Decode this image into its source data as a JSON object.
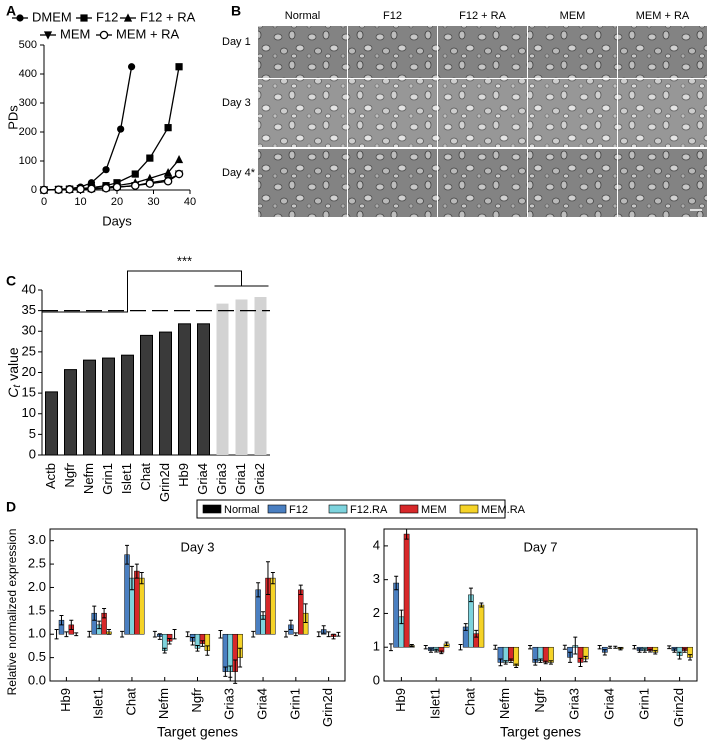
{
  "chart_data": [
    {
      "type": "line",
      "label": "A",
      "ylabel": "PDs",
      "xlabel": "Days",
      "xlim": [
        0,
        40
      ],
      "xticks": [
        0,
        10,
        20,
        30,
        40
      ],
      "ylim": [
        0,
        500
      ],
      "yticks": [
        0,
        100,
        200,
        300,
        400,
        500
      ],
      "series": [
        {
          "name": "DMEM",
          "marker": "circle",
          "color": "#000000",
          "x": [
            0,
            4,
            7,
            10,
            13,
            17,
            21,
            24
          ],
          "values": [
            0,
            2,
            5,
            10,
            25,
            70,
            210,
            425
          ]
        },
        {
          "name": "F12",
          "marker": "square",
          "color": "#000000",
          "x": [
            0,
            4,
            7,
            10,
            13,
            17,
            20,
            25,
            29,
            34,
            37
          ],
          "values": [
            0,
            2,
            3,
            5,
            8,
            15,
            25,
            55,
            110,
            215,
            425
          ]
        },
        {
          "name": "F12 + RA",
          "marker": "triangle-up",
          "color": "#000000",
          "x": [
            0,
            4,
            7,
            10,
            13,
            17,
            20,
            25,
            29,
            34,
            37
          ],
          "values": [
            0,
            1,
            2,
            3,
            5,
            8,
            15,
            25,
            40,
            60,
            105
          ]
        },
        {
          "name": "MEM",
          "marker": "triangle-down",
          "color": "#000000",
          "x": [
            0,
            4,
            7,
            10,
            13,
            17,
            20,
            25,
            29,
            34,
            37
          ],
          "values": [
            0,
            1,
            2,
            3,
            4,
            6,
            10,
            15,
            25,
            35,
            55
          ]
        },
        {
          "name": "MEM + RA",
          "marker": "circle-open",
          "color": "#000000",
          "x": [
            0,
            4,
            7,
            10,
            13,
            17,
            20,
            25,
            29,
            34,
            37
          ],
          "values": [
            0,
            1,
            2,
            3,
            4,
            6,
            10,
            15,
            22,
            30,
            55
          ]
        }
      ]
    },
    {
      "type": "bar",
      "label": "C",
      "ylabel": "C",
      "ylabel_subscript": "t",
      "ylabel_suffix": "value",
      "categories": [
        "Actb",
        "Ngfr",
        "Nefm",
        "Grin1",
        "Islet1",
        "Chat",
        "Grin2d",
        "Hb9",
        "Gria4",
        "Gria3",
        "Gria1",
        "Gria2"
      ],
      "values": [
        15.3,
        20.7,
        23,
        23.5,
        24.2,
        29,
        29.8,
        31.8,
        31.8,
        36.7,
        37.7,
        38.3
      ],
      "colors": [
        "#3a3a3a",
        "#3a3a3a",
        "#3a3a3a",
        "#3a3a3a",
        "#3a3a3a",
        "#3a3a3a",
        "#3a3a3a",
        "#3a3a3a",
        "#3a3a3a",
        "#d3d3d3",
        "#d3d3d3",
        "#d3d3d3"
      ],
      "ylim": [
        0,
        40
      ],
      "yticks": [
        0,
        5,
        10,
        15,
        20,
        25,
        30,
        35,
        40
      ],
      "reference_line": 35,
      "annotation": "***"
    },
    {
      "type": "grouped_bar",
      "label": "D",
      "title": "Day 3",
      "xlabel": "Target genes",
      "ylabel": "Relative normalized expression",
      "bar_base": 1,
      "categories": [
        "Hb9",
        "Islet1",
        "Chat",
        "Nefm",
        "Ngfr",
        "Gria3",
        "Gria4",
        "Grin1",
        "Grin2d"
      ],
      "ylim": [
        0,
        3.25
      ],
      "yticks": [
        {
          "value": 0,
          "label": "0.0"
        },
        0.5,
        {
          "value": 1,
          "label": "1.0"
        },
        1.5,
        {
          "value": 2,
          "label": "2.0"
        },
        2.5,
        {
          "value": 3,
          "label": "3.0"
        }
      ],
      "series": [
        {
          "name": "Normal",
          "color": "#000000",
          "values": [
            1,
            1,
            1,
            1,
            1,
            1,
            1,
            1,
            1
          ],
          "errors": [
            0.1,
            0.06,
            0.06,
            0.06,
            0.05,
            0.08,
            0.06,
            0.06,
            0.05
          ]
        },
        {
          "name": "F12",
          "color": "#4a7fc1",
          "values": [
            1.3,
            1.45,
            2.7,
            0.95,
            0.85,
            0.2,
            1.95,
            1.2,
            1.1
          ],
          "errors": [
            0.1,
            0.15,
            0.2,
            0.06,
            0.08,
            0.1,
            0.15,
            0.1,
            0.08
          ]
        },
        {
          "name": "F12.RA",
          "color": "#7dd3dd",
          "values": [
            1.0,
            1.2,
            2.2,
            0.65,
            0.7,
            0.2,
            1.4,
            1.0,
            1.0
          ],
          "errors": [
            0.05,
            0.08,
            0.25,
            0.05,
            0.06,
            0.12,
            0.08,
            0.03,
            0.05
          ]
        },
        {
          "name": "MEM",
          "color": "#d7282a",
          "values": [
            1.2,
            1.45,
            2.35,
            0.85,
            0.8,
            0.2,
            2.2,
            1.95,
            0.95
          ],
          "errors": [
            0.1,
            0.1,
            0.15,
            0.06,
            0.06,
            0.25,
            0.35,
            0.1,
            0.05
          ]
        },
        {
          "name": "MEM.RA",
          "color": "#f5d327",
          "values": [
            1.0,
            1.05,
            2.2,
            1.0,
            0.65,
            0.5,
            2.2,
            1.45,
            1.0
          ],
          "errors": [
            0.03,
            0.05,
            0.12,
            0.1,
            0.1,
            0.2,
            0.12,
            0.2,
            0.04
          ]
        }
      ]
    },
    {
      "type": "grouped_bar",
      "title": "Day 7",
      "xlabel": "Target genes",
      "bar_base": 1,
      "categories": [
        "Hb9",
        "Islet1",
        "Chat",
        "Nefm",
        "Ngfr",
        "Gria3",
        "Gria4",
        "Grin1",
        "Grin2d"
      ],
      "ylim": [
        0,
        4.5
      ],
      "yticks": [
        0,
        1,
        2,
        3,
        4
      ],
      "series": [
        {
          "color": "#000000",
          "values": [
            1,
            1,
            1,
            1,
            1,
            1,
            1,
            1,
            1
          ],
          "errors": [
            0.1,
            0.05,
            0.08,
            0.06,
            0.05,
            0.06,
            0.05,
            0.05,
            0.04
          ]
        },
        {
          "color": "#4a7fc1",
          "values": [
            2.9,
            0.9,
            1.6,
            0.55,
            0.55,
            0.7,
            0.85,
            0.9,
            0.9
          ],
          "errors": [
            0.2,
            0.05,
            0.1,
            0.1,
            0.08,
            0.15,
            0.08,
            0.05,
            0.05
          ]
        },
        {
          "color": "#7dd3dd",
          "values": [
            1.9,
            0.9,
            2.55,
            0.55,
            0.6,
            1.05,
            1.0,
            0.9,
            0.75
          ],
          "errors": [
            0.2,
            0.04,
            0.2,
            0.05,
            0.05,
            0.25,
            0.03,
            0.05,
            0.1
          ]
        },
        {
          "color": "#d7282a",
          "values": [
            4.35,
            0.85,
            1.4,
            0.6,
            0.55,
            0.55,
            1.0,
            0.9,
            0.9
          ],
          "errors": [
            0.15,
            0.04,
            0.1,
            0.05,
            0.04,
            0.12,
            0.03,
            0.04,
            0.05
          ]
        },
        {
          "color": "#f5d327",
          "values": [
            1.05,
            1.1,
            2.25,
            0.45,
            0.55,
            0.65,
            0.95,
            0.85,
            0.7
          ],
          "errors": [
            0.03,
            0.05,
            0.06,
            0.05,
            0.05,
            0.08,
            0.03,
            0.05,
            0.08
          ]
        }
      ]
    }
  ],
  "image_panel": {
    "label": "B",
    "columns": [
      "Normal",
      "F12",
      "F12 + RA",
      "MEM",
      "MEM + RA"
    ],
    "rows": [
      "Day 1",
      "Day 3",
      "Day 4*"
    ]
  }
}
